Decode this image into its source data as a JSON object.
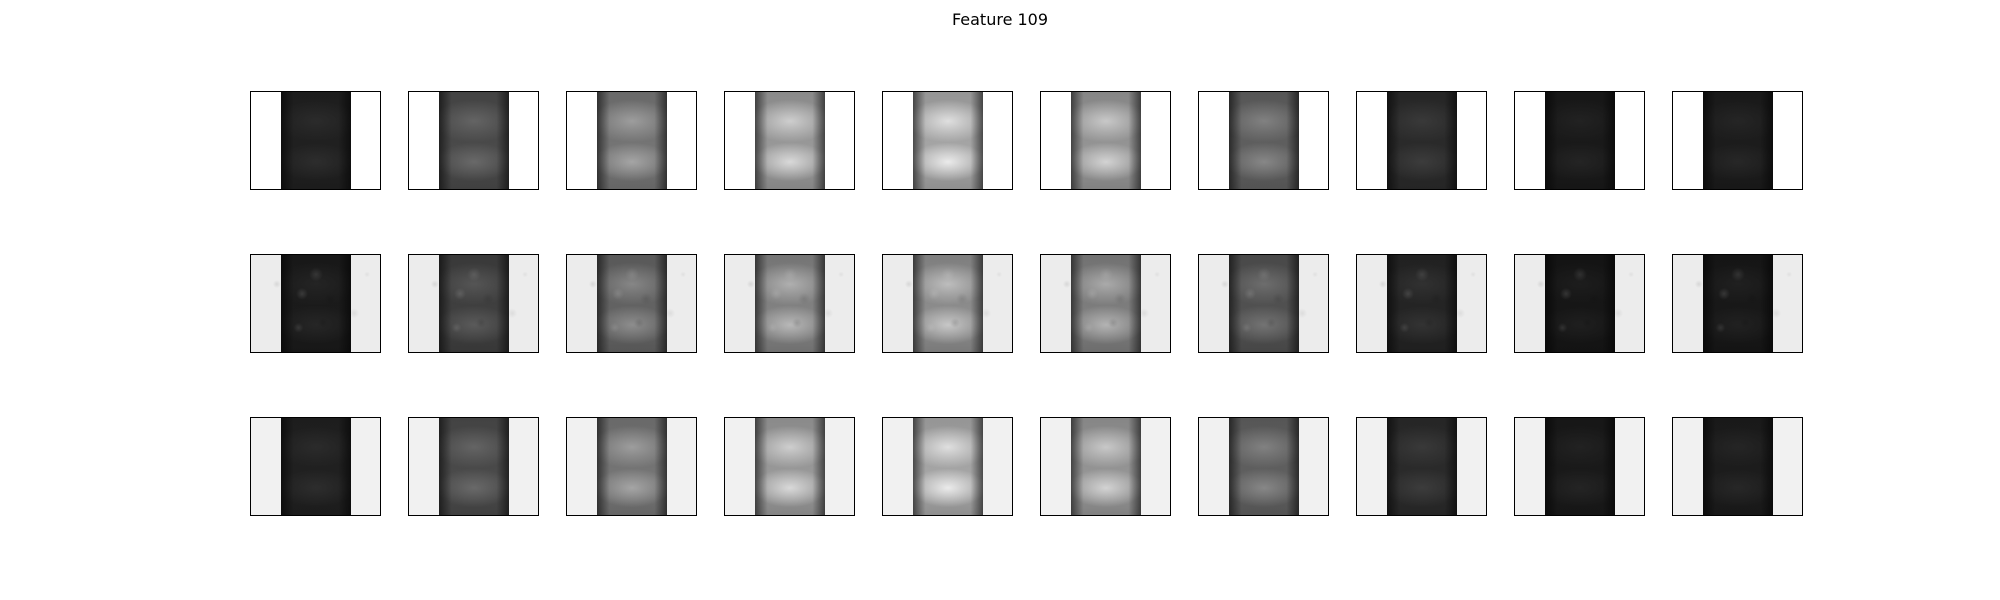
{
  "figure": {
    "title": "Feature 109"
  },
  "grid": {
    "rows": 3,
    "columns": 10,
    "column_intensity": [
      0.15,
      0.35,
      0.55,
      0.72,
      0.78,
      0.7,
      0.45,
      0.2,
      0.12,
      0.13
    ],
    "row_backgrounds": [
      "#ffffff",
      "#ececec",
      "#f1f1f1"
    ]
  }
}
